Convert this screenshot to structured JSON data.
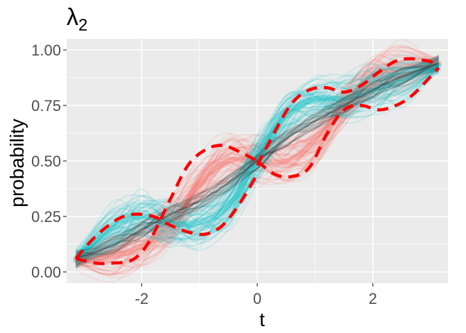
{
  "chart_data": {
    "type": "line",
    "title": "λ",
    "title_subscript": "2",
    "xlabel": "t",
    "ylabel": "probability",
    "xlim": [
      -3.3,
      3.3
    ],
    "ylim": [
      -0.05,
      1.05
    ],
    "x_ticks": [
      -2,
      0,
      2
    ],
    "x_tick_labels": [
      "-2",
      "0",
      "2"
    ],
    "y_ticks": [
      0,
      0.25,
      0.5,
      0.75,
      1
    ],
    "y_tick_labels": [
      "0.00",
      "0.25",
      "0.50",
      "0.75",
      "1.00"
    ],
    "grid": true,
    "panel_background": "#ebebeb",
    "grid_color": "#ffffff",
    "series": [
      {
        "role": "sample-band",
        "color": "#f8766d",
        "x": [
          -3.14,
          -2.5,
          -2,
          -1.5,
          -1,
          -0.5,
          0,
          0.5,
          1,
          1.5,
          2,
          2.5,
          3.14
        ],
        "values": [
          0.05,
          0.07,
          0.12,
          0.22,
          0.4,
          0.5,
          0.5,
          0.5,
          0.58,
          0.75,
          0.88,
          0.92,
          0.94
        ]
      },
      {
        "role": "sample-band",
        "color": "#00bfc4",
        "x": [
          -3.14,
          -2.5,
          -2,
          -1.5,
          -1,
          -0.5,
          0,
          0.5,
          1,
          1.5,
          2,
          2.5,
          3.14
        ],
        "values": [
          0.06,
          0.2,
          0.25,
          0.22,
          0.22,
          0.3,
          0.5,
          0.7,
          0.78,
          0.78,
          0.82,
          0.86,
          0.93
        ]
      },
      {
        "role": "mean",
        "color": "#333333",
        "x": [
          -3.14,
          -2.5,
          -2,
          -1.5,
          -1,
          -0.5,
          0,
          0.5,
          1,
          1.5,
          2,
          2.5,
          3.14
        ],
        "values": [
          0.06,
          0.12,
          0.19,
          0.26,
          0.32,
          0.4,
          0.5,
          0.6,
          0.68,
          0.75,
          0.82,
          0.88,
          0.94
        ]
      },
      {
        "role": "dashed-curve",
        "color": "#ff0000",
        "x": [
          -3.14,
          -2.8,
          -2.5,
          -2.2,
          -2,
          -1.8,
          -1.5,
          -1.2,
          -0.9,
          -0.6,
          -0.3,
          0
        ],
        "values": [
          0.06,
          0.04,
          0.04,
          0.05,
          0.09,
          0.17,
          0.33,
          0.48,
          0.55,
          0.57,
          0.54,
          0.5
        ]
      },
      {
        "role": "dashed-curve",
        "color": "#ff0000",
        "x": [
          -3.14,
          -2.8,
          -2.4,
          -2.1,
          -1.8,
          -1.5,
          -1.2,
          -0.9,
          -0.6,
          -0.3,
          0
        ],
        "values": [
          0.06,
          0.16,
          0.24,
          0.26,
          0.25,
          0.21,
          0.18,
          0.17,
          0.21,
          0.31,
          0.44
        ]
      },
      {
        "role": "dashed-curve",
        "color": "#ff0000",
        "x": [
          0,
          0.3,
          0.6,
          0.9,
          1.2,
          1.5,
          1.8,
          2.1,
          2.4,
          2.7,
          3.14
        ],
        "values": [
          0.5,
          0.44,
          0.43,
          0.47,
          0.62,
          0.73,
          0.75,
          0.73,
          0.75,
          0.8,
          0.92
        ]
      },
      {
        "role": "dashed-curve",
        "color": "#ff0000",
        "x": [
          0,
          0.3,
          0.6,
          0.9,
          1.2,
          1.5,
          1.8,
          2.1,
          2.4,
          2.7,
          3.14
        ],
        "values": [
          0.48,
          0.63,
          0.76,
          0.82,
          0.83,
          0.81,
          0.84,
          0.9,
          0.95,
          0.96,
          0.94
        ]
      }
    ]
  }
}
